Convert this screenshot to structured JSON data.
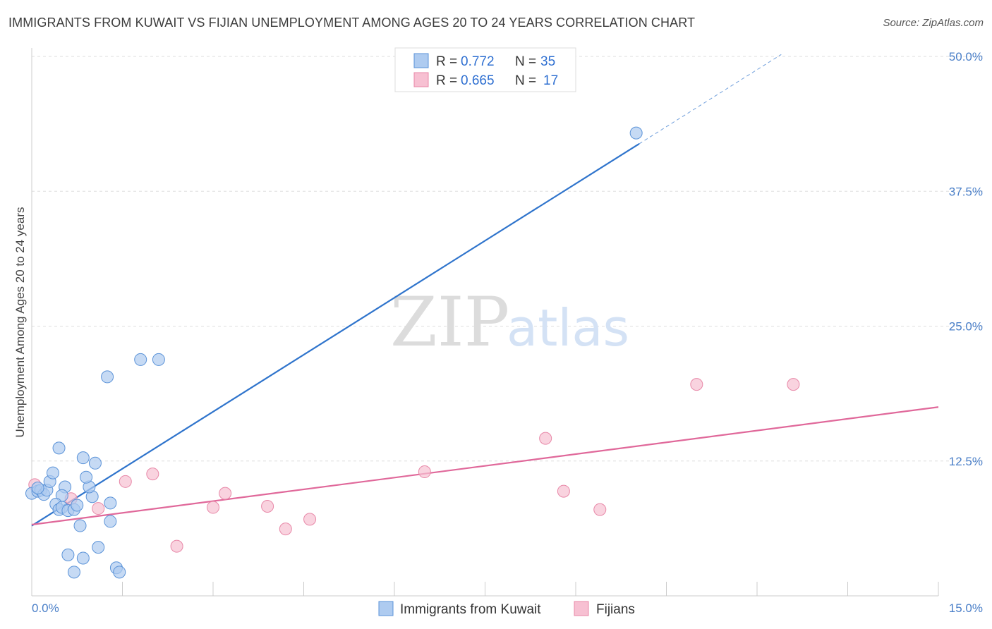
{
  "header": {
    "title": "IMMIGRANTS FROM KUWAIT VS FIJIAN UNEMPLOYMENT AMONG AGES 20 TO 24 YEARS CORRELATION CHART",
    "source": "Source: ZipAtlas.com"
  },
  "watermark": {
    "zip": "ZIP",
    "atlas": "atlas"
  },
  "legend_top": [
    {
      "r_label": "R =",
      "r_value": "0.772",
      "n_label": "N =",
      "n_value": "35"
    },
    {
      "r_label": "R =",
      "r_value": "0.665",
      "n_label": "N =",
      "n_value": "17"
    }
  ],
  "colors": {
    "kuwait_fill": "#aecbf0",
    "kuwait_stroke": "#5b93d8",
    "kuwait_line": "#2f74cc",
    "fijian_fill": "#f7c0d2",
    "fijian_stroke": "#e888a8",
    "fijian_line": "#e0689a",
    "grid": "#dddddd",
    "axis": "#cccccc"
  },
  "chart_data": {
    "type": "scatter",
    "title": "IMMIGRANTS FROM KUWAIT VS FIJIAN UNEMPLOYMENT AMONG AGES 20 TO 24 YEARS CORRELATION CHART",
    "xlabel": "",
    "ylabel": "Unemployment Among Ages 20 to 24 years",
    "xlim": [
      0,
      15
    ],
    "ylim": [
      0,
      50
    ],
    "x_tick_labels": [
      "0.0%",
      "15.0%"
    ],
    "y_tick_values": [
      12.5,
      25.0,
      37.5,
      50.0
    ],
    "y_tick_labels": [
      "12.5%",
      "25.0%",
      "37.5%",
      "50.0%"
    ],
    "grid": true,
    "legend_position": "top-center",
    "series": [
      {
        "name": "Immigrants from Kuwait",
        "R": 0.772,
        "N": 35,
        "points": [
          [
            0.0,
            9.5
          ],
          [
            0.1,
            9.7
          ],
          [
            0.15,
            9.8
          ],
          [
            0.2,
            9.4
          ],
          [
            0.25,
            9.8
          ],
          [
            0.3,
            10.6
          ],
          [
            0.35,
            11.4
          ],
          [
            0.45,
            13.7
          ],
          [
            0.55,
            10.1
          ],
          [
            0.5,
            9.3
          ],
          [
            0.4,
            8.5
          ],
          [
            0.45,
            8.0
          ],
          [
            0.5,
            8.2
          ],
          [
            0.6,
            7.9
          ],
          [
            0.7,
            8.0
          ],
          [
            0.75,
            8.4
          ],
          [
            0.8,
            6.5
          ],
          [
            0.85,
            12.8
          ],
          [
            1.0,
            9.2
          ],
          [
            1.05,
            12.3
          ],
          [
            0.95,
            10.1
          ],
          [
            1.3,
            6.9
          ],
          [
            1.3,
            8.6
          ],
          [
            1.25,
            20.3
          ],
          [
            1.1,
            4.5
          ],
          [
            0.85,
            3.5
          ],
          [
            0.6,
            3.8
          ],
          [
            0.7,
            2.2
          ],
          [
            1.4,
            2.6
          ],
          [
            1.45,
            2.2
          ],
          [
            1.8,
            21.9
          ],
          [
            2.1,
            21.9
          ],
          [
            10.0,
            42.9
          ],
          [
            0.1,
            10.0
          ],
          [
            0.9,
            11.0
          ]
        ]
      },
      {
        "name": "Fijians",
        "R": 0.665,
        "N": 17,
        "points": [
          [
            0.05,
            10.3
          ],
          [
            0.65,
            9.0
          ],
          [
            1.1,
            8.1
          ],
          [
            1.55,
            10.6
          ],
          [
            2.0,
            11.3
          ],
          [
            2.4,
            4.6
          ],
          [
            3.0,
            8.2
          ],
          [
            3.2,
            9.5
          ],
          [
            3.9,
            8.3
          ],
          [
            4.2,
            6.2
          ],
          [
            4.6,
            7.1
          ],
          [
            6.5,
            11.5
          ],
          [
            8.5,
            14.6
          ],
          [
            8.8,
            9.7
          ],
          [
            9.4,
            8.0
          ],
          [
            11.0,
            19.6
          ],
          [
            12.6,
            19.6
          ]
        ]
      }
    ],
    "trendlines": [
      {
        "series": "Immigrants from Kuwait",
        "x": [
          0,
          10.05
        ],
        "y": [
          6.5,
          41.9
        ],
        "dashed_extension_to_x": 12.4
      },
      {
        "series": "Fijians",
        "x": [
          0,
          15
        ],
        "y": [
          6.6,
          17.5
        ]
      }
    ]
  }
}
